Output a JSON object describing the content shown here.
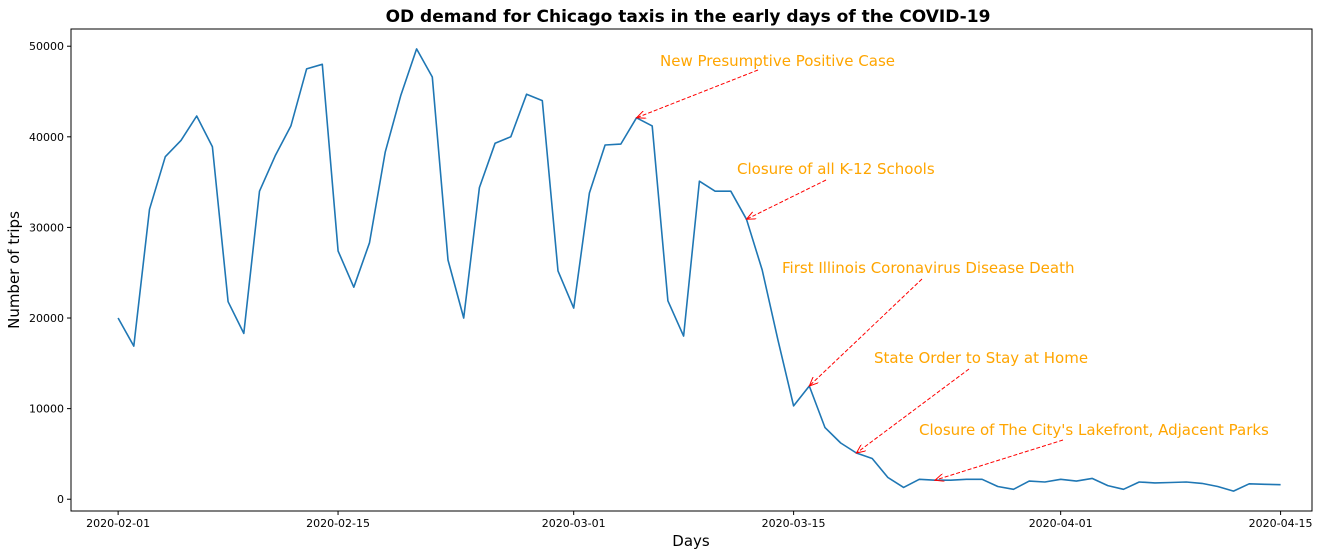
{
  "chart_data": {
    "type": "line",
    "title": "OD demand for Chicago taxis in the early days of the COVID-19",
    "xlabel": "Days",
    "ylabel": "Number of trips",
    "x_tick_labels": [
      "2020-02-01",
      "2020-02-15",
      "2020-03-01",
      "2020-03-15",
      "2020-04-01",
      "2020-04-15"
    ],
    "y_tick_labels": [
      "0",
      "10000",
      "20000",
      "30000",
      "40000",
      "50000"
    ],
    "xlim": [
      "2020-01-29",
      "2020-04-17"
    ],
    "ylim": [
      -1300,
      51900
    ],
    "grid": false,
    "series": [
      {
        "color": "#1f77b4",
        "points": [
          [
            "2020-02-01",
            20000
          ],
          [
            "2020-02-02",
            16900
          ],
          [
            "2020-02-03",
            32000
          ],
          [
            "2020-02-04",
            37800
          ],
          [
            "2020-02-05",
            39600
          ],
          [
            "2020-02-06",
            42300
          ],
          [
            "2020-02-07",
            38900
          ],
          [
            "2020-02-08",
            21800
          ],
          [
            "2020-02-09",
            18300
          ],
          [
            "2020-02-10",
            34000
          ],
          [
            "2020-02-11",
            37900
          ],
          [
            "2020-02-12",
            41200
          ],
          [
            "2020-02-13",
            47500
          ],
          [
            "2020-02-14",
            48000
          ],
          [
            "2020-02-15",
            27400
          ],
          [
            "2020-02-16",
            23400
          ],
          [
            "2020-02-17",
            28300
          ],
          [
            "2020-02-18",
            38300
          ],
          [
            "2020-02-19",
            44600
          ],
          [
            "2020-02-20",
            49700
          ],
          [
            "2020-02-21",
            46600
          ],
          [
            "2020-02-22",
            26400
          ],
          [
            "2020-02-23",
            20000
          ],
          [
            "2020-02-24",
            34400
          ],
          [
            "2020-02-25",
            39300
          ],
          [
            "2020-02-26",
            40000
          ],
          [
            "2020-02-27",
            44700
          ],
          [
            "2020-02-28",
            44000
          ],
          [
            "2020-02-29",
            25200
          ],
          [
            "2020-03-01",
            21100
          ],
          [
            "2020-03-02",
            33800
          ],
          [
            "2020-03-03",
            39100
          ],
          [
            "2020-03-04",
            39200
          ],
          [
            "2020-03-05",
            42100
          ],
          [
            "2020-03-06",
            41200
          ],
          [
            "2020-03-07",
            21900
          ],
          [
            "2020-03-08",
            18000
          ],
          [
            "2020-03-09",
            35100
          ],
          [
            "2020-03-10",
            34000
          ],
          [
            "2020-03-11",
            34000
          ],
          [
            "2020-03-12",
            30900
          ],
          [
            "2020-03-13",
            25300
          ],
          [
            "2020-03-14",
            17600
          ],
          [
            "2020-03-15",
            10300
          ],
          [
            "2020-03-16",
            12500
          ],
          [
            "2020-03-17",
            7900
          ],
          [
            "2020-03-18",
            6200
          ],
          [
            "2020-03-19",
            5100
          ],
          [
            "2020-03-20",
            4500
          ],
          [
            "2020-03-21",
            2400
          ],
          [
            "2020-03-22",
            1300
          ],
          [
            "2020-03-23",
            2200
          ],
          [
            "2020-03-24",
            2100
          ],
          [
            "2020-03-25",
            2100
          ],
          [
            "2020-03-26",
            2200
          ],
          [
            "2020-03-27",
            2200
          ],
          [
            "2020-03-28",
            1400
          ],
          [
            "2020-03-29",
            1100
          ],
          [
            "2020-03-30",
            2000
          ],
          [
            "2020-03-31",
            1900
          ],
          [
            "2020-04-01",
            2200
          ],
          [
            "2020-04-02",
            2000
          ],
          [
            "2020-04-03",
            2300
          ],
          [
            "2020-04-04",
            1500
          ],
          [
            "2020-04-05",
            1100
          ],
          [
            "2020-04-06",
            1900
          ],
          [
            "2020-04-07",
            1800
          ],
          [
            "2020-04-08",
            1850
          ],
          [
            "2020-04-09",
            1900
          ],
          [
            "2020-04-10",
            1750
          ],
          [
            "2020-04-11",
            1400
          ],
          [
            "2020-04-12",
            900
          ],
          [
            "2020-04-13",
            1700
          ],
          [
            "2020-04-14",
            1650
          ],
          [
            "2020-04-15",
            1600
          ]
        ]
      }
    ],
    "annotations": [
      {
        "text": "New Presumptive Positive Case",
        "target": [
          "2020-03-05",
          42100
        ],
        "color": "#ffa500",
        "arrow_color": "#ff0000"
      },
      {
        "text": "Closure of all K-12 Schools",
        "target": [
          "2020-03-12",
          30900
        ],
        "color": "#ffa500",
        "arrow_color": "#ff0000"
      },
      {
        "text": "First Illinois Coronavirus Disease Death",
        "target": [
          "2020-03-16",
          12500
        ],
        "color": "#ffa500",
        "arrow_color": "#ff0000"
      },
      {
        "text": "State Order to Stay at Home",
        "target": [
          "2020-03-19",
          5100
        ],
        "color": "#ffa500",
        "arrow_color": "#ff0000"
      },
      {
        "text": "Closure of The City's Lakefront, Adjacent Parks",
        "target": [
          "2020-03-24",
          2100
        ],
        "color": "#ffa500",
        "arrow_color": "#ff0000"
      }
    ]
  }
}
